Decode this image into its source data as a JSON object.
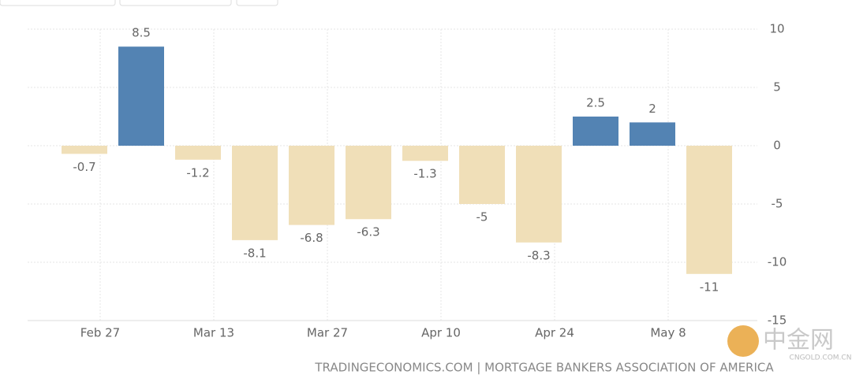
{
  "chart_data": {
    "type": "bar",
    "values": [
      -0.7,
      8.5,
      -1.2,
      -8.1,
      -6.8,
      -6.3,
      -1.3,
      -5,
      -8.3,
      2.5,
      2,
      -11
    ],
    "positive_color": "#5383b3",
    "negative_color": "#f0dfb8",
    "xticks": [
      "Feb 27",
      "Mar 13",
      "Mar 27",
      "Apr 10",
      "Apr 24",
      "May 8"
    ],
    "ylim": [
      -15,
      10
    ],
    "yticks": [
      10,
      5,
      0,
      -5,
      -10,
      -15
    ],
    "grid": true,
    "source": "TRADINGECONOMICS.COM | MORTGAGE BANKERS ASSOCIATION OF AMERICA"
  },
  "watermark": {
    "title": "中金网",
    "site": "CNGOLD.COM.CN"
  }
}
